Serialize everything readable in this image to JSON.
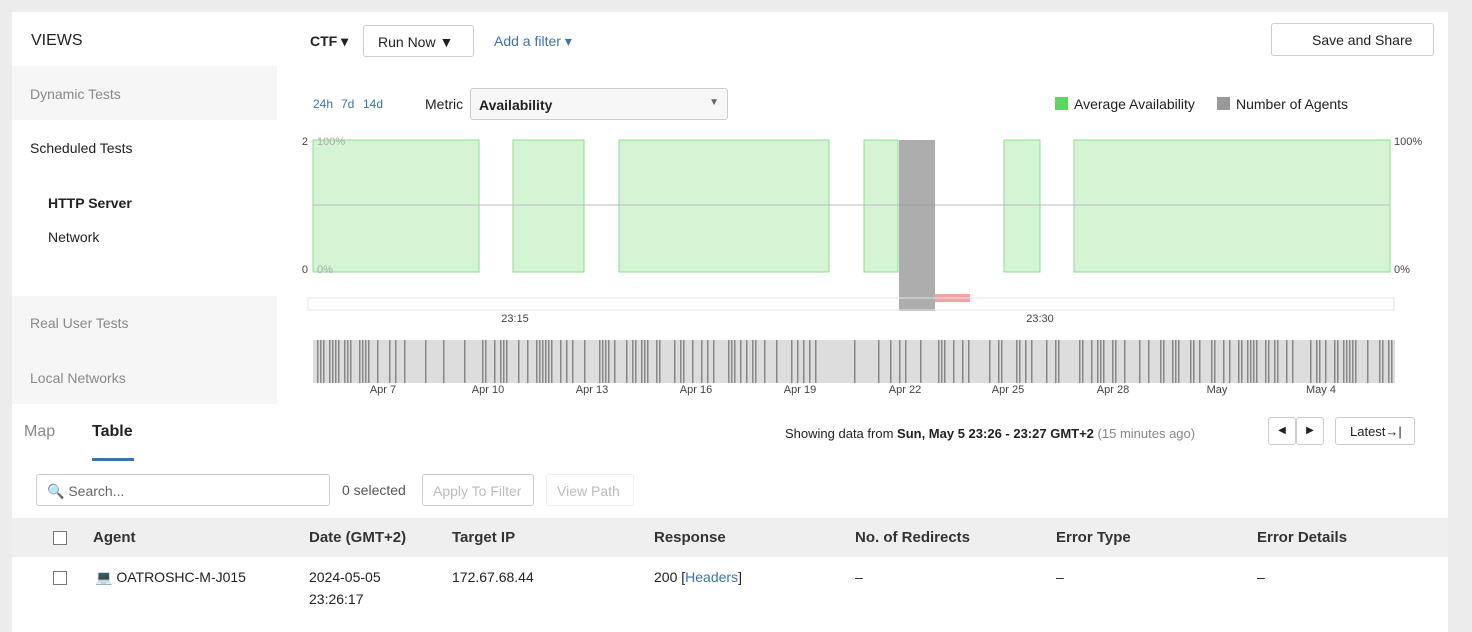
{
  "sidebar": {
    "title": "VIEWS",
    "items": [
      "Dynamic Tests",
      "Scheduled Tests",
      "HTTP Server",
      "Network",
      "Real User Tests",
      "Local Networks"
    ]
  },
  "toolbar": {
    "view": "CTF",
    "run": "Run Now",
    "filter": "Add a filter",
    "share": "Save and Share"
  },
  "controls": {
    "ranges": [
      "24h",
      "7d",
      "14d"
    ],
    "metric_label": "Metric",
    "metric": "Availability"
  },
  "legend": [
    "Average Availability",
    "Number of Agents"
  ],
  "chart": {
    "left_axis": [
      "2",
      "0"
    ],
    "inner_axis": [
      "100%",
      "0%"
    ],
    "right_axis": [
      "100%",
      "0%"
    ],
    "time_ticks": [
      "23:15",
      "23:30"
    ],
    "overview_ticks": [
      "Apr 7",
      "Apr 10",
      "Apr 13",
      "Apr 16",
      "Apr 19",
      "Apr 22",
      "Apr 25",
      "Apr 28",
      "May",
      "May 4"
    ]
  },
  "tabs": [
    "Map",
    "Table"
  ],
  "status": {
    "prefix": "Showing data from",
    "range": "Sun, May 5 23:26 - 23:27 GMT+2",
    "ago": "(15 minutes ago)",
    "latest": "Latest"
  },
  "filters": {
    "search": "Search...",
    "selected": "0 selected",
    "apply": "Apply To Filter",
    "path": "View Path"
  },
  "table": {
    "columns": [
      "Agent",
      "Date (GMT+2)",
      "Target IP",
      "Response",
      "No. of Redirects",
      "Error Type",
      "Error Details"
    ],
    "rows": [
      {
        "agent": "OATROSHC-M-J015",
        "date": "2024-05-05",
        "time": "23:26:17",
        "ip": "172.67.68.44",
        "response": "200",
        "link": "Headers",
        "redirects": "–",
        "error_type": "–",
        "error_details": "–"
      }
    ]
  }
}
